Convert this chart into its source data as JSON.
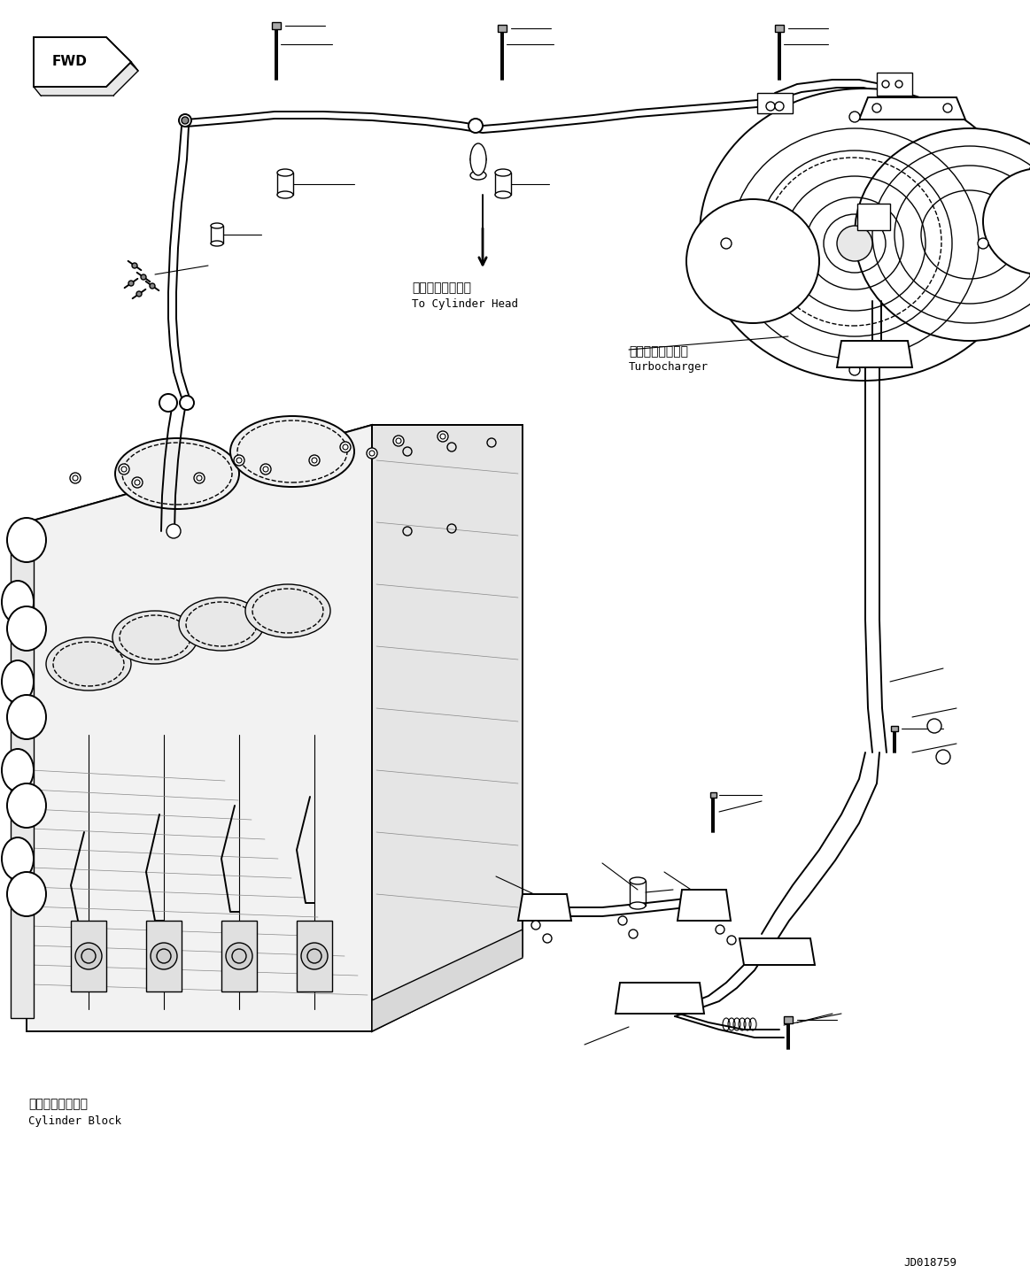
{
  "bg_color": "#ffffff",
  "line_color": "#000000",
  "fig_width": 11.63,
  "fig_height": 14.38,
  "dpi": 100,
  "labels": {
    "fwd": "FWD",
    "to_cylinder_head_jp": "シリンダヘッドへ",
    "to_cylinder_head_en": "To Cylinder Head",
    "turbocharger_jp": "ターボチャージャ",
    "turbocharger_en": "Turbocharger",
    "cylinder_block_jp": "シリンダブロック",
    "cylinder_block_en": "Cylinder Block",
    "drawing_number": "JD018759"
  }
}
